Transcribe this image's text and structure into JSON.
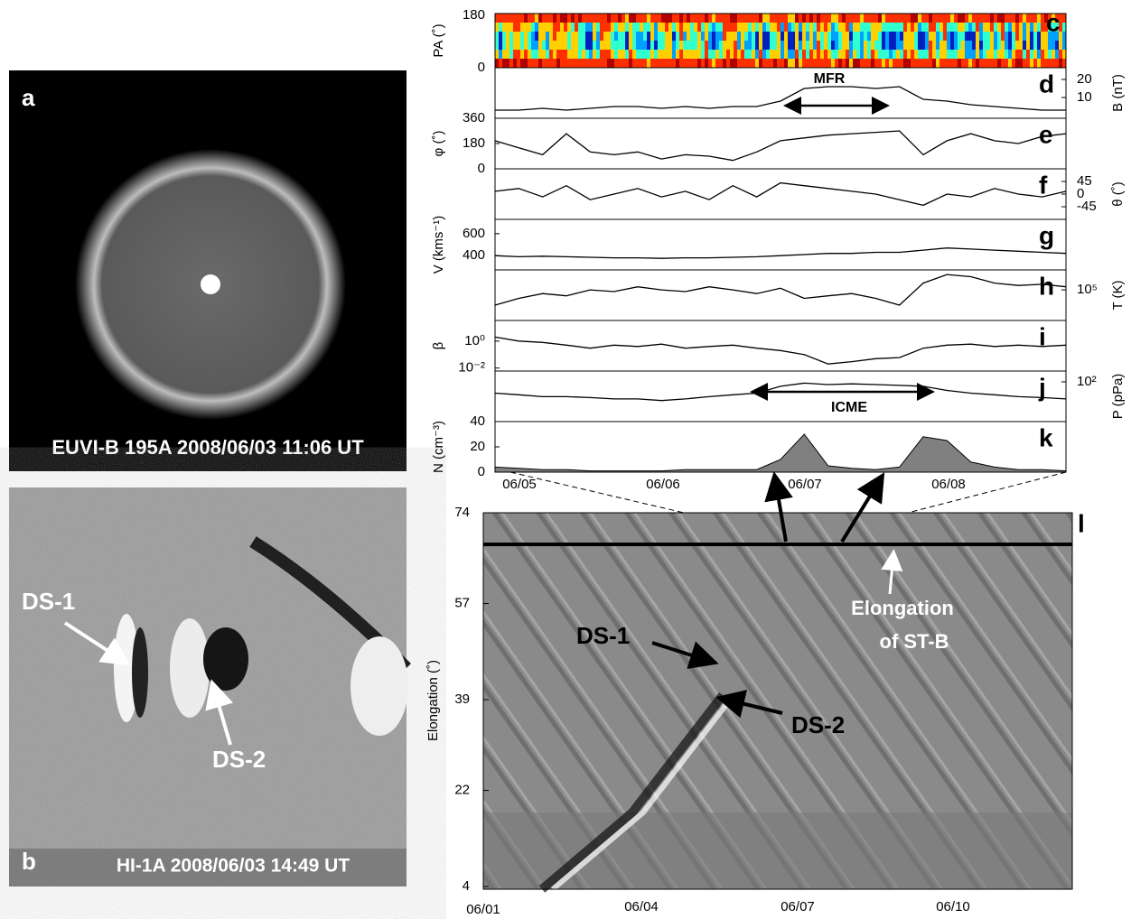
{
  "panels": {
    "a": {
      "label": "a",
      "caption": "EUVI-B 195A 2008/06/03 11:06 UT"
    },
    "b": {
      "label": "b",
      "caption": "HI-1A 2008/06/03 14:49 UT",
      "annotations": [
        "DS-1",
        "DS-2"
      ]
    },
    "c": {
      "label": "c",
      "ylabel": "PA (˚)",
      "yticks": [
        "180",
        "0"
      ]
    },
    "l": {
      "label": "l",
      "ylabel": "Elongation (˚)",
      "ylim": [
        4,
        74
      ],
      "yticks": [
        74,
        57,
        39,
        22,
        4
      ],
      "xticks": [
        "06/01",
        "06/04",
        "06/07",
        "06/10"
      ],
      "annotations": [
        "DS-1",
        "DS-2",
        "Elongation",
        "of ST-B"
      ]
    }
  },
  "time_axis": {
    "ticks": [
      "06/05",
      "06/06",
      "06/07",
      "06/08"
    ]
  },
  "chart_data": [
    {
      "type": "line",
      "label": "d",
      "ylabel": "B (nT)",
      "side": "right",
      "ylim": [
        -1.5,
        26.5
      ],
      "yticks": [
        20,
        10
      ],
      "annotation": "MFR",
      "color": "#000000",
      "values": [
        3,
        3,
        4,
        3,
        4,
        5,
        5,
        4,
        5,
        4,
        5,
        5,
        8,
        15,
        16,
        16,
        15,
        16,
        9,
        8,
        6,
        5,
        4,
        3,
        3
      ]
    },
    {
      "type": "line",
      "label": "e",
      "ylabel": "φ (˚)",
      "side": "left",
      "ylim": [
        0,
        360
      ],
      "yticks": [
        360,
        180,
        0
      ],
      "color": "#000000",
      "values": [
        200,
        150,
        100,
        250,
        120,
        100,
        120,
        70,
        100,
        90,
        60,
        120,
        200,
        220,
        240,
        250,
        260,
        270,
        100,
        200,
        250,
        200,
        180,
        230,
        250
      ]
    },
    {
      "type": "line",
      "label": "f",
      "ylabel": "θ (˚)",
      "side": "right",
      "ylim": [
        -90,
        90
      ],
      "yticks": [
        45,
        0,
        -45
      ],
      "color": "#000000",
      "values": [
        10,
        20,
        -10,
        30,
        -20,
        0,
        20,
        -10,
        10,
        -20,
        30,
        -10,
        40,
        30,
        20,
        10,
        0,
        -20,
        -40,
        0,
        -10,
        20,
        0,
        -10,
        10
      ]
    },
    {
      "type": "line",
      "label": "g",
      "ylabel": "V (kms⁻¹)",
      "side": "left",
      "ylim": [
        270,
        730
      ],
      "yticks": [
        600,
        400
      ],
      "color": "#000000",
      "values": [
        400,
        390,
        395,
        390,
        385,
        380,
        380,
        375,
        380,
        380,
        385,
        390,
        400,
        410,
        420,
        420,
        430,
        430,
        450,
        470,
        460,
        450,
        440,
        430,
        420
      ]
    },
    {
      "type": "line",
      "label": "h",
      "ylabel": "T (K)",
      "side": "right",
      "log": true,
      "ylim": [
        16000,
        330000
      ],
      "yticks": [
        {
          "value": 100000,
          "label": "10⁵"
        }
      ],
      "color": "#000000",
      "values": [
        40000,
        60000,
        80000,
        70000,
        100000,
        90000,
        120000,
        100000,
        90000,
        120000,
        100000,
        80000,
        110000,
        60000,
        70000,
        80000,
        60000,
        40000,
        150000,
        250000,
        220000,
        150000,
        130000,
        140000,
        120000
      ]
    },
    {
      "type": "line",
      "label": "i",
      "ylabel": "β",
      "side": "left",
      "log": true,
      "ylim": [
        0.006,
        34
      ],
      "yticks": [
        {
          "value": 1,
          "label": "10⁰"
        },
        {
          "value": 0.01,
          "label": "10⁻²"
        }
      ],
      "color": "#000000",
      "values": [
        2,
        1,
        0.8,
        0.5,
        0.3,
        0.5,
        0.4,
        0.6,
        0.3,
        0.4,
        0.5,
        0.3,
        0.2,
        0.1,
        0.02,
        0.03,
        0.05,
        0.06,
        0.3,
        0.5,
        0.6,
        0.4,
        0.5,
        0.4,
        0.5
      ]
    },
    {
      "type": "line",
      "label": "j",
      "ylabel": "P (pPa)",
      "side": "right",
      "log": true,
      "ylim": [
        4,
        240
      ],
      "yticks": [
        {
          "value": 100,
          "label": "10²"
        }
      ],
      "annotation": "ICME",
      "color": "#000000",
      "values": [
        40,
        35,
        30,
        30,
        28,
        25,
        25,
        22,
        25,
        30,
        35,
        40,
        70,
        90,
        80,
        85,
        80,
        75,
        70,
        50,
        40,
        35,
        30,
        28,
        25
      ]
    },
    {
      "type": "area",
      "label": "k",
      "ylabel": "N (cm⁻³)",
      "side": "left",
      "ylim": [
        0,
        40
      ],
      "yticks": [
        40,
        20,
        0
      ],
      "color": "#808080",
      "values": [
        4,
        3,
        2,
        2,
        1,
        1,
        1,
        1,
        2,
        2,
        2,
        2,
        10,
        30,
        5,
        3,
        2,
        4,
        28,
        25,
        8,
        4,
        2,
        2,
        1
      ]
    }
  ]
}
